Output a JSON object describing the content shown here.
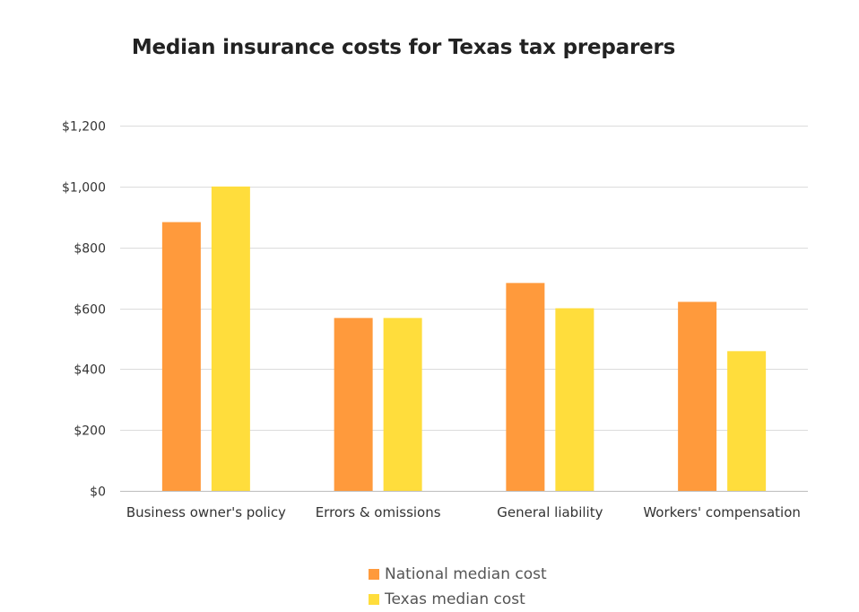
{
  "chart_data": {
    "type": "bar",
    "title": "Median insurance costs for Texas tax preparers",
    "xlabel": "",
    "ylabel": "",
    "categories": [
      "Business owner's policy",
      "Errors & omissions",
      "General liability",
      "Workers' compensation"
    ],
    "series": [
      {
        "name": "National median cost",
        "color": "#FF9A3C",
        "values": [
          883,
          568,
          683,
          621
        ]
      },
      {
        "name": "Texas median cost",
        "color": "#FFDD3C",
        "values": [
          1000,
          568,
          600,
          459
        ]
      }
    ],
    "ylim": [
      0,
      1200
    ],
    "yticks": [
      0,
      200,
      400,
      600,
      800,
      1000,
      1200
    ],
    "ytick_labels": [
      "$0",
      "$200",
      "$400",
      "$600",
      "$800",
      "$1,000",
      "$1,200"
    ],
    "grid": true,
    "legend_position": "bottom"
  }
}
